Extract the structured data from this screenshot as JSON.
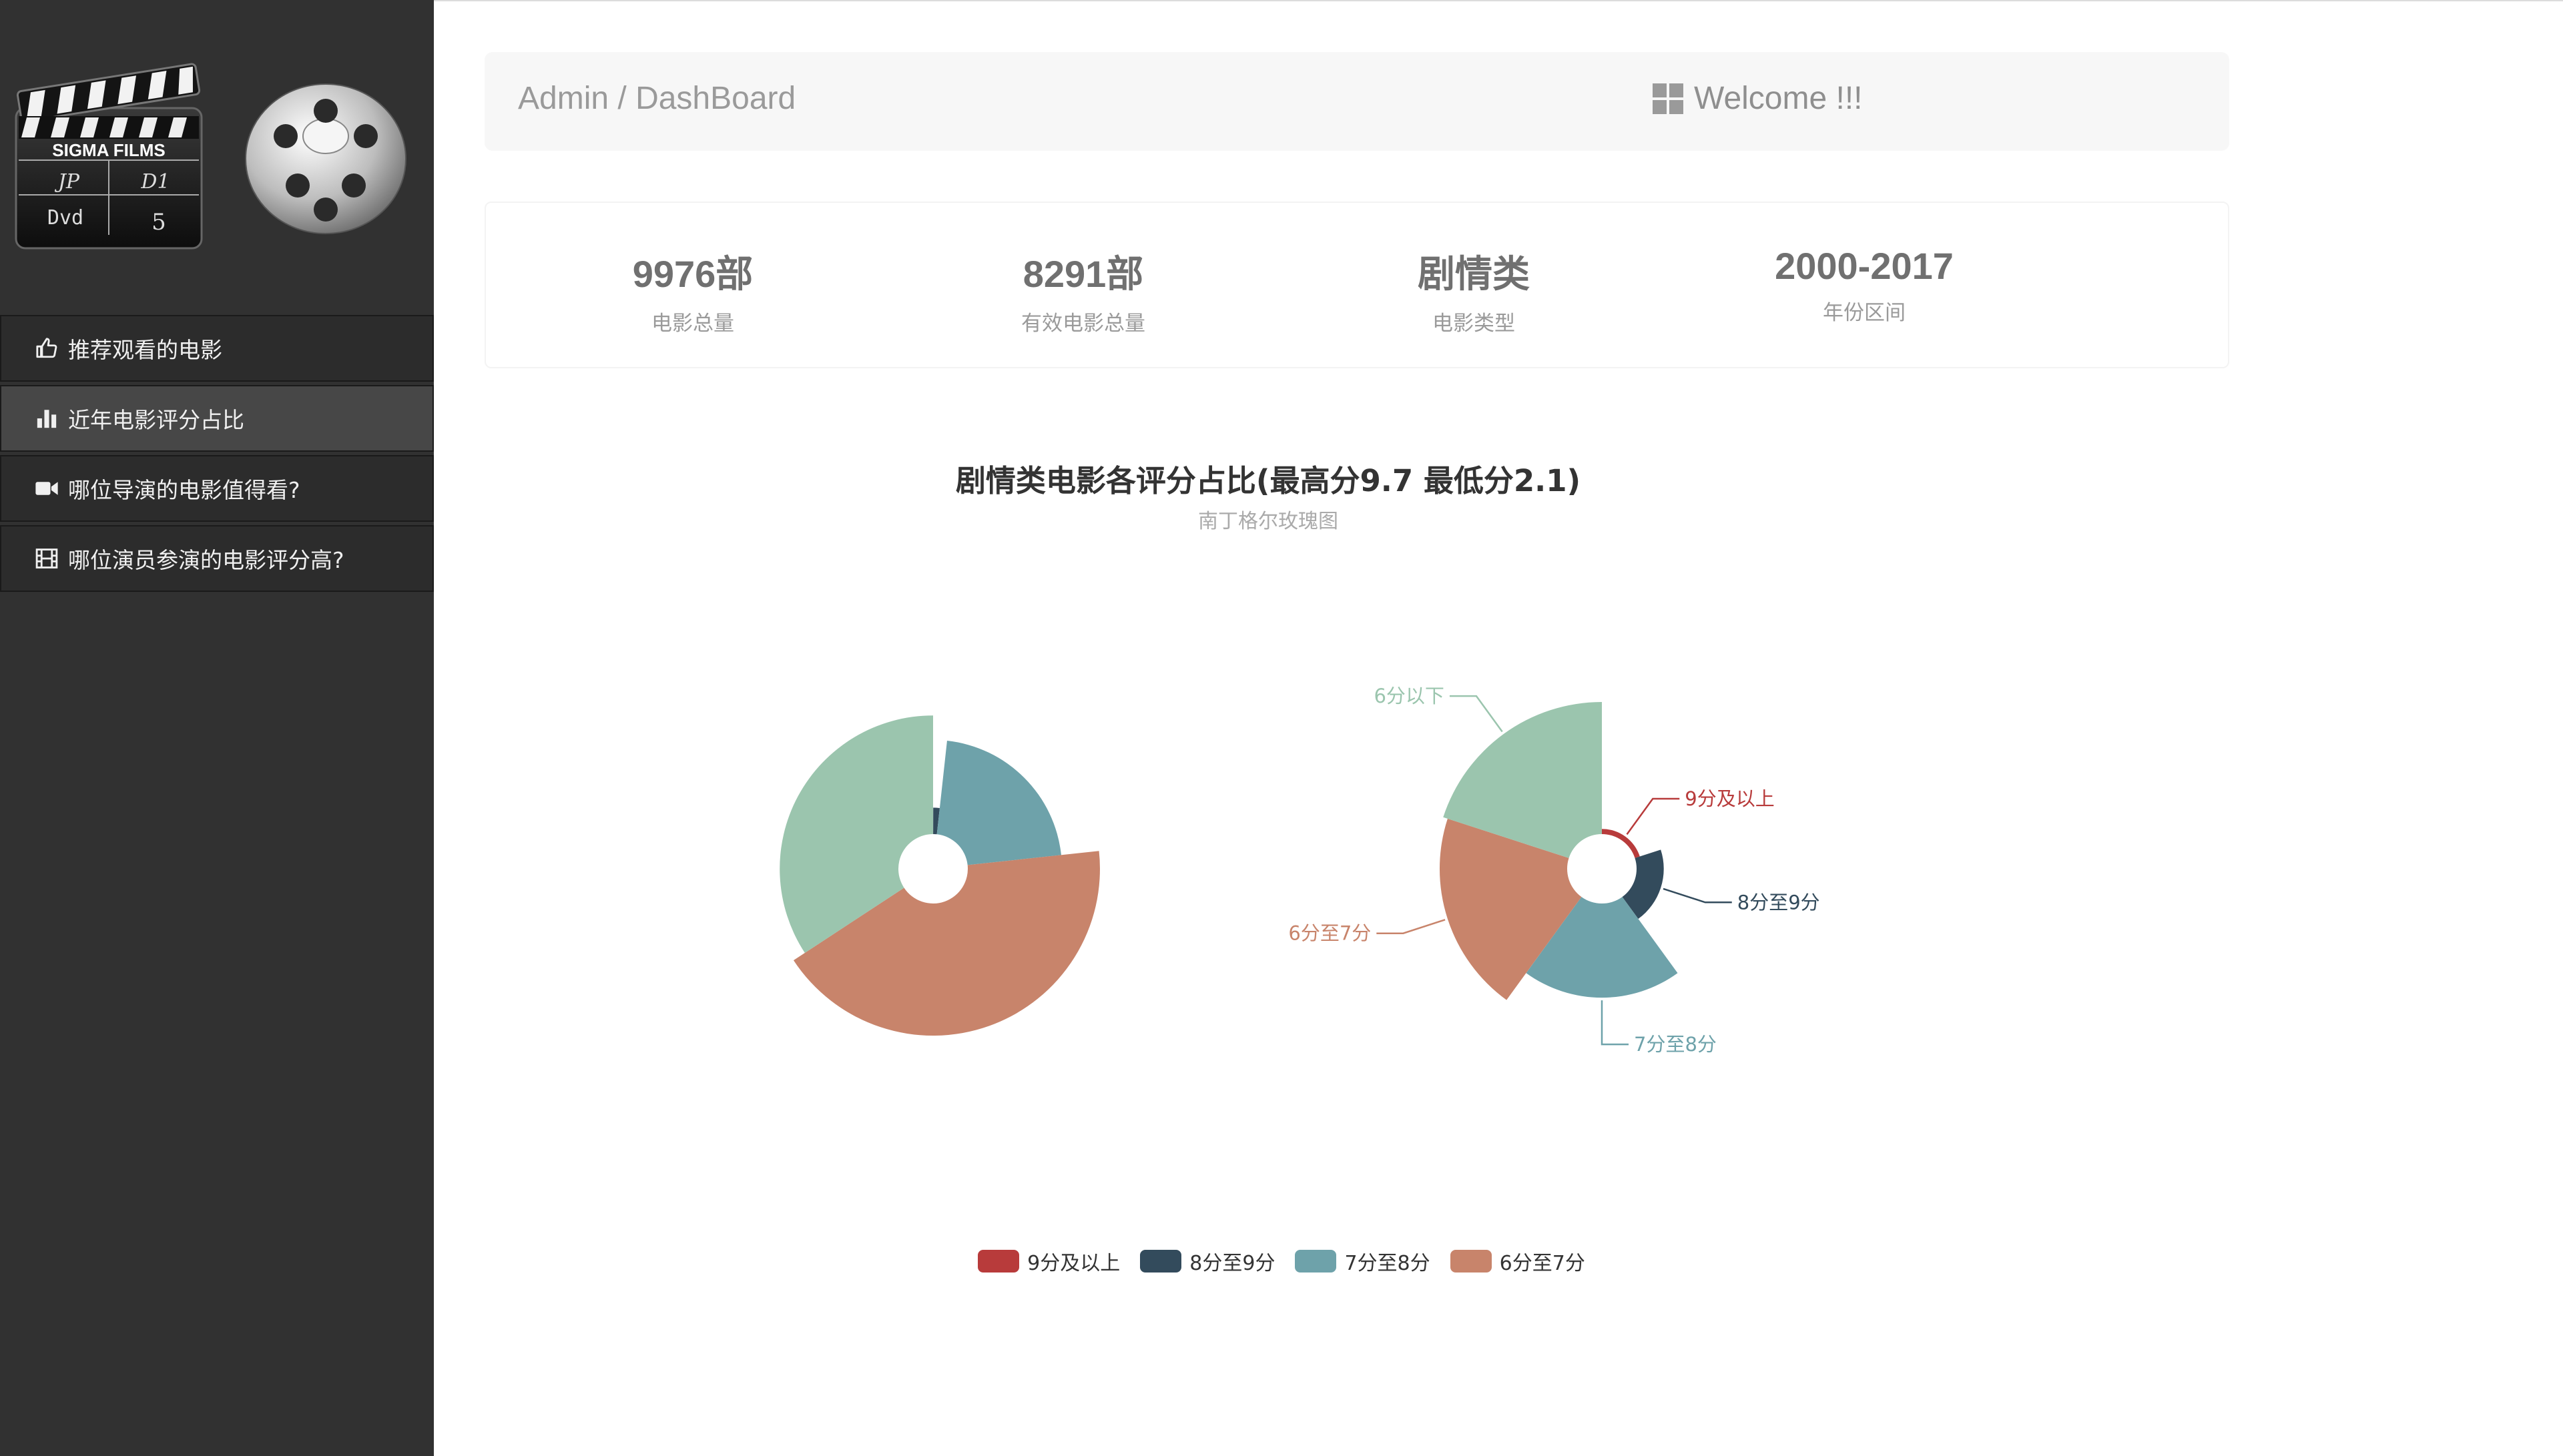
{
  "sidebar": {
    "logo_text": [
      "SIGMA FILMS",
      "JP",
      "D1",
      "Dvd",
      "5"
    ],
    "items": [
      {
        "label": "推荐观看的电影",
        "icon": "thumbs-up-icon"
      },
      {
        "label": "近年电影评分占比",
        "icon": "bar-chart-icon",
        "active": true
      },
      {
        "label": "哪位导演的电影值得看?",
        "icon": "video-camera-icon"
      },
      {
        "label": "哪位演员参演的电影评分高?",
        "icon": "film-icon"
      }
    ]
  },
  "header": {
    "breadcrumb": "Admin / DashBoard",
    "welcome": "Welcome !!!",
    "welcome_icon": "grid-icon"
  },
  "stats": [
    {
      "value": "9976部",
      "label": "电影总量"
    },
    {
      "value": "8291部",
      "label": "有效电影总量"
    },
    {
      "value": "剧情类",
      "label": "电影类型"
    },
    {
      "value": "2000-2017",
      "label": "年份区间"
    }
  ],
  "chart_data": {
    "type": "pie",
    "subtype": "nightingale-rose",
    "title": "剧情类电影各评分占比(最高分9.7 最低分2.1)",
    "subtitle": "南丁格尔玫瑰图",
    "categories": [
      "9分及以上",
      "8分至9分",
      "7分至8分",
      "6分至7分",
      "6分以下"
    ],
    "colors": [
      "#b83b3b",
      "#334b5c",
      "#6ea2aa",
      "#c8846b",
      "#9bc5ae"
    ],
    "legend": [
      "9分及以上",
      "8分至9分",
      "7分至8分",
      "6分至7分"
    ],
    "legend_position": "bottom",
    "charts": [
      {
        "rose_type": "radius",
        "values": [
          1,
          52,
          660,
          1300,
          1048
        ]
      },
      {
        "rose_type": "area",
        "values": [
          2,
          55,
          660,
          1210,
          1300
        ]
      }
    ]
  }
}
